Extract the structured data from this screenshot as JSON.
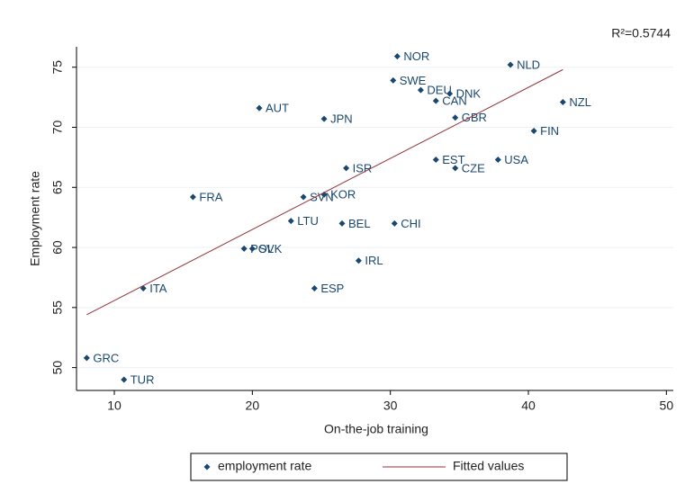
{
  "chart_data": {
    "type": "scatter",
    "annotation": "R²=0.5744",
    "x_label": "On-the-job training",
    "y_label": "Employment rate",
    "xlim": [
      7.26,
      50.5
    ],
    "ylim": [
      48.1,
      76.7
    ],
    "xticks": [
      10,
      20,
      30,
      40,
      50
    ],
    "yticks": [
      50,
      55,
      60,
      65,
      70,
      75
    ],
    "grid": true,
    "series": [
      {
        "name": "employment rate",
        "color": "#1a476f",
        "labels": [
          "NOR",
          "NLD",
          "SWE",
          "DEU",
          "DNK",
          "CAN",
          "NZL",
          "AUT",
          "JPN",
          "GBR",
          "FIN",
          "EST",
          "USA",
          "CZE",
          "ISR",
          "FRA",
          "SVN",
          "KOR",
          "LTU",
          "BEL",
          "CHI",
          "POL",
          "SVK",
          "IRL",
          "ITA",
          "ESP",
          "GRC",
          "TUR"
        ],
        "x": [
          30.5,
          38.7,
          30.2,
          32.2,
          34.3,
          33.3,
          42.5,
          20.5,
          25.2,
          34.7,
          40.4,
          33.3,
          37.8,
          34.7,
          26.8,
          15.7,
          23.7,
          25.2,
          22.8,
          26.5,
          30.3,
          19.4,
          20.0,
          27.7,
          12.1,
          24.5,
          8.0,
          10.7
        ],
        "values": [
          75.9,
          75.2,
          73.9,
          73.1,
          72.8,
          72.2,
          72.1,
          71.6,
          70.7,
          70.8,
          69.7,
          67.3,
          67.3,
          66.6,
          66.6,
          64.2,
          64.2,
          64.4,
          62.2,
          62.0,
          62.0,
          59.9,
          59.9,
          58.9,
          56.6,
          56.6,
          50.8,
          49.0
        ]
      },
      {
        "name": "Fitted values",
        "type": "line",
        "color": "#90353b",
        "x": [
          8,
          42.5
        ],
        "values": [
          54.4,
          74.8
        ]
      }
    ]
  }
}
